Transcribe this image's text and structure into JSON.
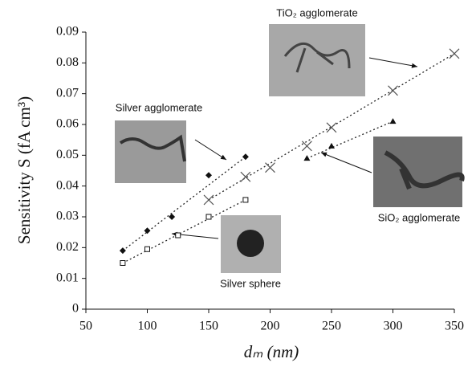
{
  "chart_data": {
    "type": "scatter",
    "x_label": "dₘ (nm)",
    "y_label": "Sensitivity S  (fA cm³)",
    "xlim": [
      50,
      350
    ],
    "xticks": [
      50,
      100,
      150,
      200,
      250,
      300,
      350
    ],
    "ylim": [
      0,
      0.09
    ],
    "yticks": [
      0,
      0.01,
      0.02,
      0.03,
      0.04,
      0.05,
      0.06,
      0.07,
      0.08,
      0.09
    ],
    "series": [
      {
        "name": "Silver agglomerate",
        "marker": "diamond",
        "color": "#111111",
        "x": [
          80,
          100,
          120,
          150,
          180
        ],
        "values": [
          0.019,
          0.0255,
          0.03,
          0.0435,
          0.0495
        ]
      },
      {
        "name": "Silver sphere",
        "marker": "open-square",
        "color": "#111111",
        "x": [
          80,
          100,
          125,
          150,
          180
        ],
        "values": [
          0.015,
          0.0195,
          0.024,
          0.03,
          0.0355
        ]
      },
      {
        "name": "TiO₂ agglomerate",
        "marker": "cross",
        "color": "#555555",
        "x": [
          150,
          180,
          200,
          230,
          250,
          300,
          350
        ],
        "values": [
          0.0355,
          0.043,
          0.046,
          0.053,
          0.059,
          0.071,
          0.083
        ]
      },
      {
        "name": "SiO₂ agglomerate",
        "marker": "triangle",
        "color": "#111111",
        "x": [
          230,
          250,
          300
        ],
        "values": [
          0.049,
          0.053,
          0.061
        ]
      }
    ]
  }
}
